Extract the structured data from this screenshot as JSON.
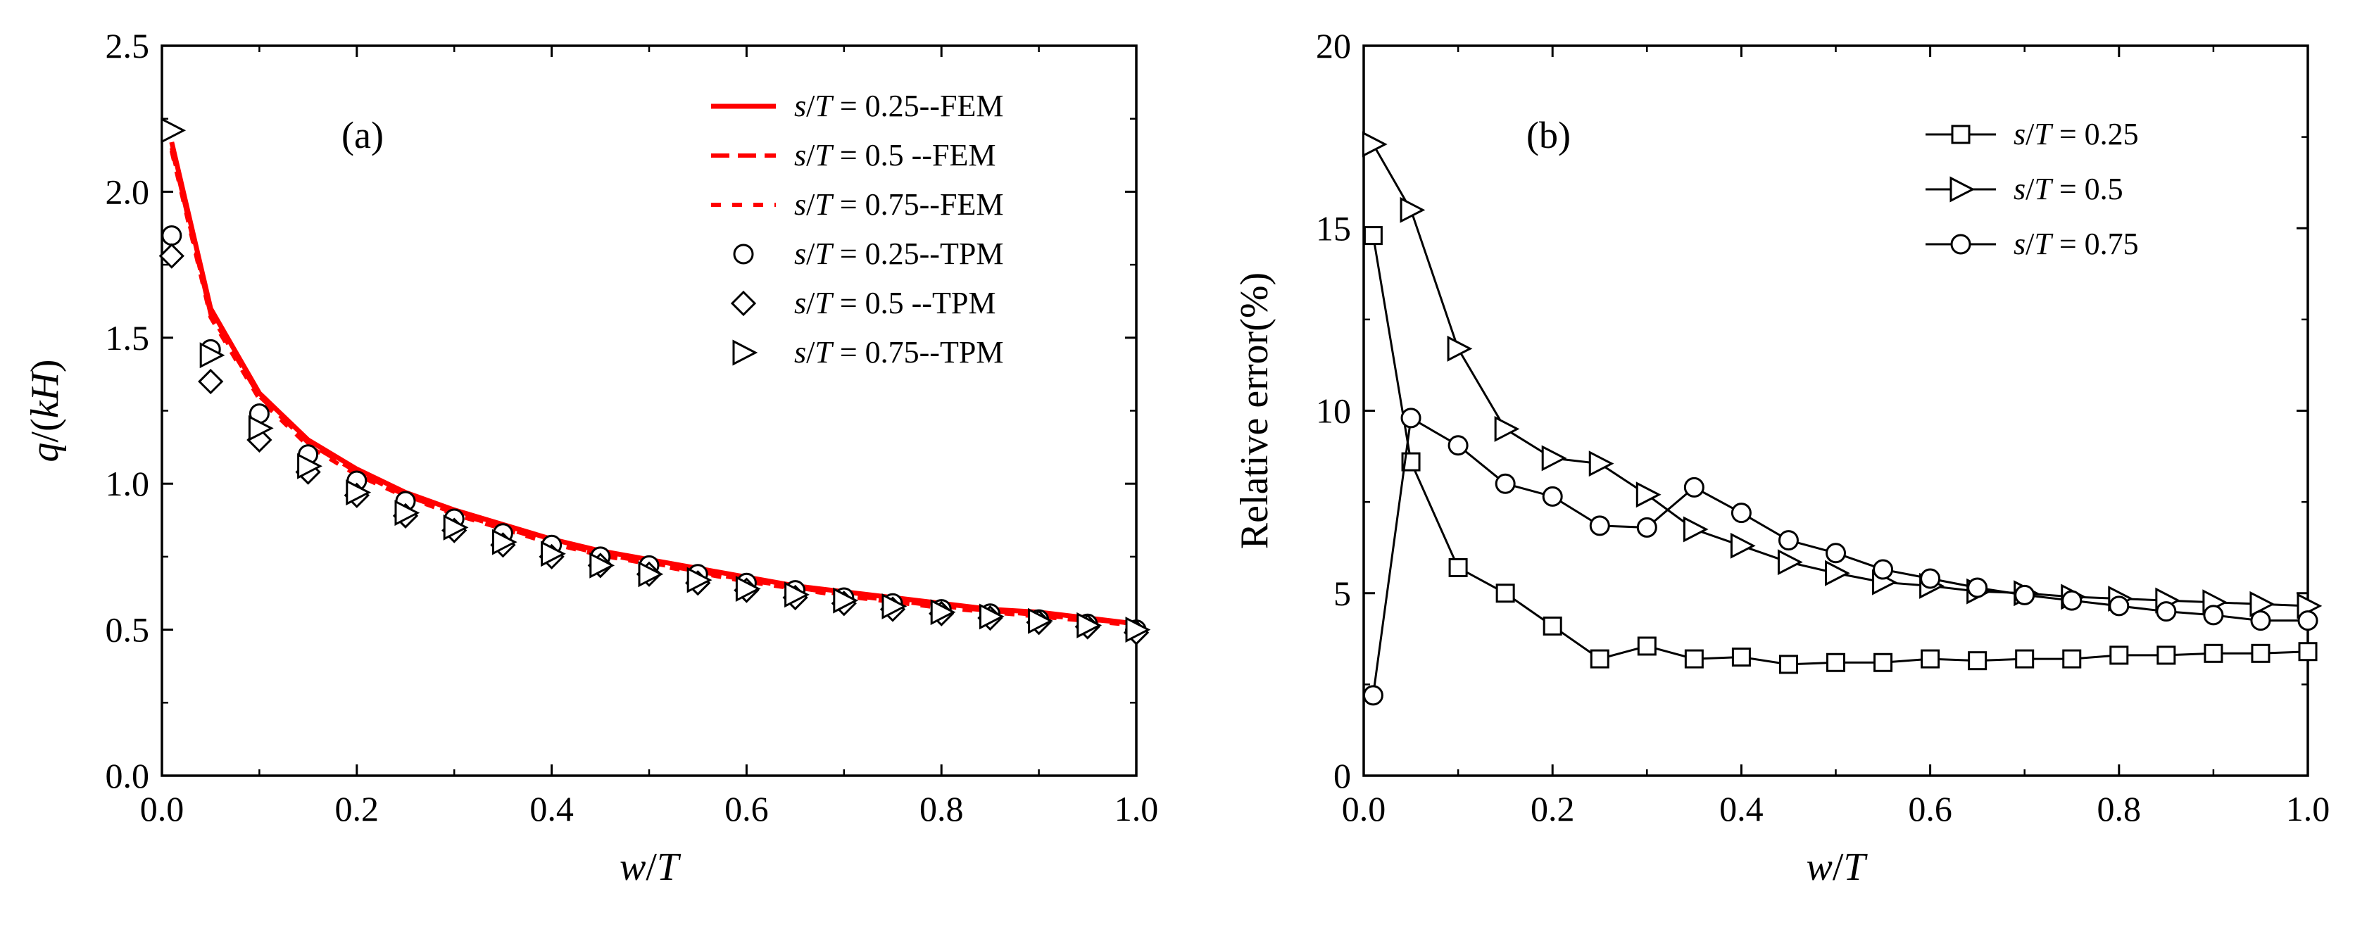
{
  "chart_data": [
    {
      "type": "line",
      "panel_label": "(a)",
      "xlabel": "w/T",
      "ylabel": "q/(kH)",
      "xlim": [
        0,
        1
      ],
      "ylim": [
        0,
        2.5
      ],
      "xticks": [
        "0.0",
        "0.2",
        "0.4",
        "0.6",
        "0.8",
        "1.0"
      ],
      "yticks": [
        "0.0",
        "0.5",
        "1.0",
        "1.5",
        "2.0",
        "2.5"
      ],
      "legend_position": "top-right",
      "series": [
        {
          "name": "s/T = 0.25--FEM",
          "style": "solid",
          "color": "#ff0000",
          "x": [
            0.01,
            0.05,
            0.1,
            0.15,
            0.2,
            0.25,
            0.3,
            0.35,
            0.4,
            0.45,
            0.5,
            0.55,
            0.6,
            0.65,
            0.7,
            0.75,
            0.8,
            0.85,
            0.9,
            0.95,
            1.0
          ],
          "values": [
            2.17,
            1.6,
            1.31,
            1.15,
            1.05,
            0.97,
            0.91,
            0.86,
            0.81,
            0.77,
            0.74,
            0.71,
            0.68,
            0.65,
            0.63,
            0.61,
            0.59,
            0.57,
            0.56,
            0.54,
            0.52
          ]
        },
        {
          "name": "s/T = 0.5  --FEM",
          "style": "dashed",
          "color": "#ff0000",
          "x": [
            0.01,
            0.05,
            0.1,
            0.15,
            0.2,
            0.25,
            0.3,
            0.35,
            0.4,
            0.45,
            0.5,
            0.55,
            0.6,
            0.65,
            0.7,
            0.75,
            0.8,
            0.85,
            0.9,
            0.95,
            1.0
          ],
          "values": [
            2.15,
            1.58,
            1.3,
            1.14,
            1.04,
            0.96,
            0.9,
            0.85,
            0.8,
            0.76,
            0.73,
            0.7,
            0.67,
            0.645,
            0.62,
            0.6,
            0.58,
            0.565,
            0.55,
            0.535,
            0.52
          ]
        },
        {
          "name": "s/T = 0.75--FEM",
          "style": "dotted",
          "color": "#ff0000",
          "x": [
            0.01,
            0.05,
            0.1,
            0.15,
            0.2,
            0.25,
            0.3,
            0.35,
            0.4,
            0.45,
            0.5,
            0.55,
            0.6,
            0.65,
            0.7,
            0.75,
            0.8,
            0.85,
            0.9,
            0.95,
            1.0
          ],
          "values": [
            2.14,
            1.57,
            1.29,
            1.13,
            1.03,
            0.955,
            0.895,
            0.845,
            0.795,
            0.755,
            0.725,
            0.695,
            0.665,
            0.64,
            0.615,
            0.595,
            0.575,
            0.56,
            0.545,
            0.53,
            0.515
          ]
        },
        {
          "name": "s/T = 0.25--TPM",
          "marker": "circle",
          "x": [
            0.01,
            0.05,
            0.1,
            0.15,
            0.2,
            0.25,
            0.3,
            0.35,
            0.4,
            0.45,
            0.5,
            0.55,
            0.6,
            0.65,
            0.7,
            0.75,
            0.8,
            0.85,
            0.9,
            0.95,
            1.0
          ],
          "values": [
            1.85,
            1.46,
            1.24,
            1.1,
            1.01,
            0.94,
            0.88,
            0.83,
            0.79,
            0.75,
            0.72,
            0.69,
            0.66,
            0.635,
            0.61,
            0.59,
            0.57,
            0.555,
            0.535,
            0.52,
            0.5
          ]
        },
        {
          "name": "s/T = 0.5  --TPM",
          "marker": "diamond",
          "x": [
            0.01,
            0.05,
            0.1,
            0.15,
            0.2,
            0.25,
            0.3,
            0.35,
            0.4,
            0.45,
            0.5,
            0.55,
            0.6,
            0.65,
            0.7,
            0.75,
            0.8,
            0.85,
            0.9,
            0.95,
            1.0
          ],
          "values": [
            1.78,
            1.35,
            1.15,
            1.04,
            0.96,
            0.89,
            0.84,
            0.79,
            0.75,
            0.72,
            0.69,
            0.66,
            0.635,
            0.61,
            0.59,
            0.57,
            0.555,
            0.54,
            0.525,
            0.51,
            0.49
          ]
        },
        {
          "name": "s/T = 0.75--TPM",
          "marker": "triangle-right",
          "x": [
            0.01,
            0.05,
            0.1,
            0.15,
            0.2,
            0.25,
            0.3,
            0.35,
            0.4,
            0.45,
            0.5,
            0.55,
            0.6,
            0.65,
            0.7,
            0.75,
            0.8,
            0.85,
            0.9,
            0.95,
            1.0
          ],
          "values": [
            2.21,
            1.44,
            1.19,
            1.06,
            0.97,
            0.9,
            0.85,
            0.8,
            0.76,
            0.72,
            0.69,
            0.67,
            0.64,
            0.62,
            0.6,
            0.58,
            0.56,
            0.545,
            0.53,
            0.515,
            0.5
          ]
        }
      ]
    },
    {
      "type": "line",
      "panel_label": "(b)",
      "xlabel": "w/T",
      "ylabel": "Relative error(%)",
      "xlim": [
        0,
        1
      ],
      "ylim": [
        0,
        20
      ],
      "xticks": [
        "0.0",
        "0.2",
        "0.4",
        "0.6",
        "0.8",
        "1.0"
      ],
      "yticks": [
        "0",
        "5",
        "10",
        "15",
        "20"
      ],
      "legend_position": "top-right",
      "series": [
        {
          "name": "s/T = 0.25",
          "marker": "square",
          "x": [
            0.01,
            0.05,
            0.1,
            0.15,
            0.2,
            0.25,
            0.3,
            0.35,
            0.4,
            0.45,
            0.5,
            0.55,
            0.6,
            0.65,
            0.7,
            0.75,
            0.8,
            0.85,
            0.9,
            0.95,
            1.0
          ],
          "values": [
            14.8,
            8.6,
            5.7,
            5.0,
            4.1,
            3.2,
            3.55,
            3.2,
            3.25,
            3.05,
            3.1,
            3.1,
            3.2,
            3.15,
            3.2,
            3.2,
            3.3,
            3.3,
            3.35,
            3.35,
            3.4
          ]
        },
        {
          "name": "s/T = 0.5",
          "marker": "triangle-right",
          "x": [
            0.01,
            0.05,
            0.1,
            0.15,
            0.2,
            0.25,
            0.3,
            0.35,
            0.4,
            0.45,
            0.5,
            0.55,
            0.6,
            0.65,
            0.7,
            0.75,
            0.8,
            0.85,
            0.9,
            0.95,
            1.0
          ],
          "values": [
            17.3,
            15.5,
            11.7,
            9.5,
            8.7,
            8.55,
            7.7,
            6.75,
            6.3,
            5.85,
            5.55,
            5.3,
            5.2,
            5.05,
            5.0,
            4.9,
            4.85,
            4.8,
            4.75,
            4.7,
            4.65
          ]
        },
        {
          "name": "s/T = 0.75",
          "marker": "circle",
          "x": [
            0.01,
            0.05,
            0.1,
            0.15,
            0.2,
            0.25,
            0.3,
            0.35,
            0.4,
            0.45,
            0.5,
            0.55,
            0.6,
            0.65,
            0.7,
            0.75,
            0.8,
            0.85,
            0.9,
            0.95,
            1.0
          ],
          "values": [
            2.2,
            9.8,
            9.05,
            8.0,
            7.65,
            6.85,
            6.8,
            7.9,
            7.2,
            6.45,
            6.1,
            5.65,
            5.4,
            5.15,
            4.95,
            4.8,
            4.65,
            4.5,
            4.4,
            4.25,
            4.25
          ]
        }
      ]
    }
  ]
}
